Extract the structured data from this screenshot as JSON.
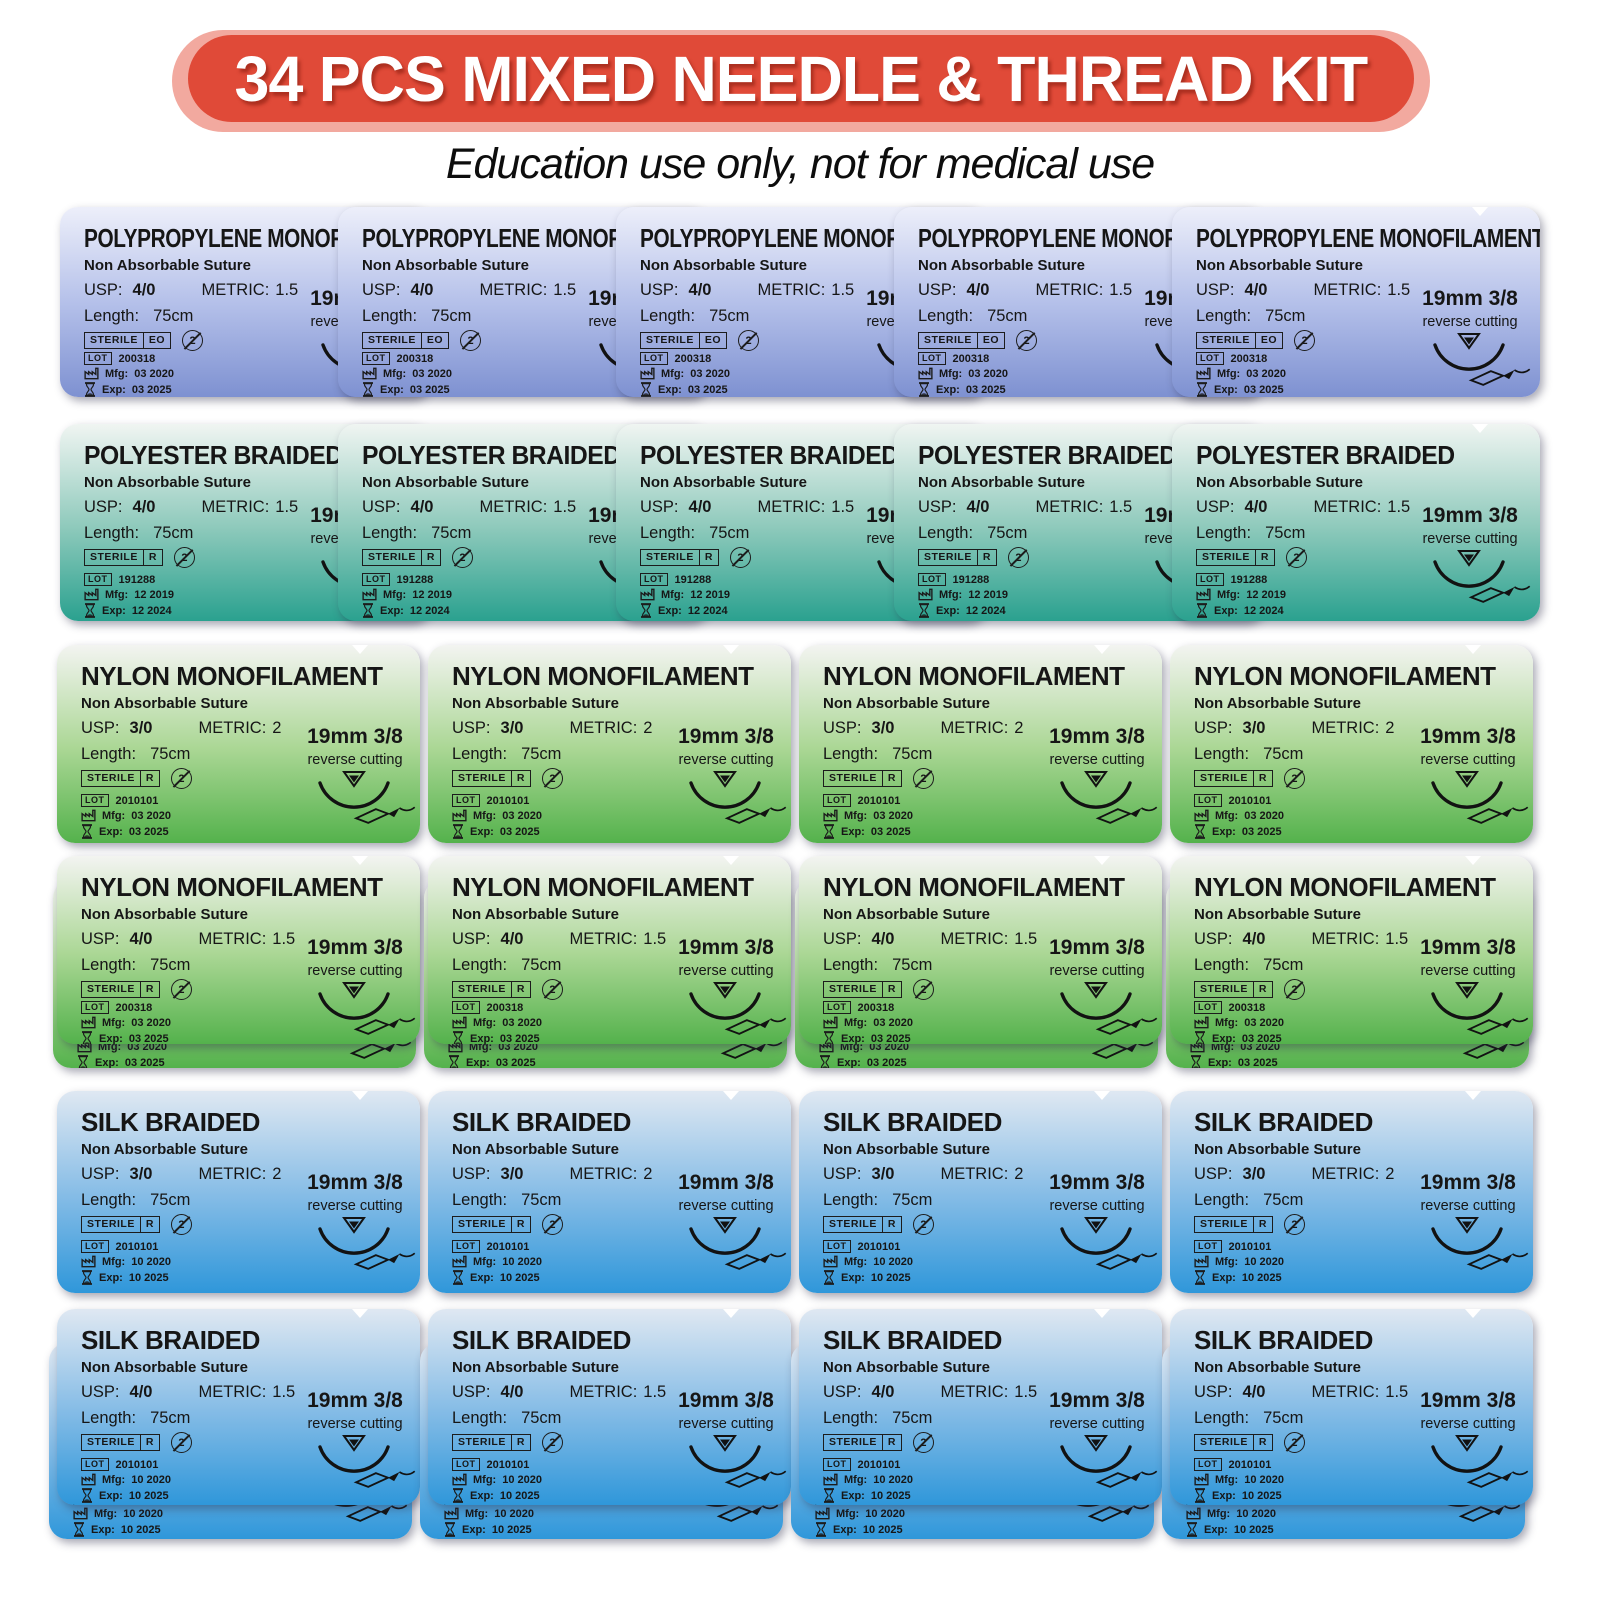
{
  "header": {
    "title": "34 PCS MIXED NEEDLE & THREAD KIT",
    "subtitle": "Education use only, not for medical use",
    "badge_color": "#e04a38",
    "badge_outer_color": "#f2a99f",
    "title_color": "#ffffff"
  },
  "icons": {
    "no_reuse_number": "2",
    "do_not_reuse": "do-not-reuse-icon",
    "manufacture_date": "factory-icon",
    "expiry_date": "hourglass-icon",
    "needle_curvature": "needle-curvature-icon",
    "curved_needle": "curved-needle-icon"
  },
  "rows": [
    {
      "id": "polypropylene-4-0",
      "title": "POLYPROPYLENE MONOFILAMENT",
      "material_subtitle": "Non Absorbable Suture",
      "usp_label": "USP:",
      "usp_value": "4/0",
      "metric_label": "METRIC:",
      "metric_value": "1.5",
      "length_label": "Length:",
      "length_value": "75cm",
      "needle_size": "19mm 3/8",
      "needle_type": "reverse cutting",
      "sterile_label": "STERILE",
      "sterile_method": "EO",
      "lot_label": "LOT",
      "lot_value": "200318",
      "mfg_label": "Mfg:",
      "mfg_value": "03 2020",
      "exp_label": "Exp:",
      "exp_value": "03 2025",
      "count": 5,
      "layers": 1,
      "layout": "cascade",
      "colors": {
        "top": "#edeffa",
        "mid": "#b3bfe9",
        "bottom": "#7e91d1"
      }
    },
    {
      "id": "polyester-4-0",
      "title": "POLYESTER BRAIDED",
      "material_subtitle": "Non Absorbable Suture",
      "usp_label": "USP:",
      "usp_value": "4/0",
      "metric_label": "METRIC:",
      "metric_value": "1.5",
      "length_label": "Length:",
      "length_value": "75cm",
      "needle_size": "19mm 3/8",
      "needle_type": "reverse cutting",
      "sterile_label": "STERILE",
      "sterile_method": "R",
      "lot_label": "LOT",
      "lot_value": "191288",
      "mfg_label": "Mfg:",
      "mfg_value": "12 2019",
      "exp_label": "Exp:",
      "exp_value": "12 2024",
      "count": 5,
      "layers": 1,
      "layout": "cascade",
      "colors": {
        "top": "#f0f5f2",
        "mid": "#8fcabc",
        "bottom": "#2aa18f"
      }
    },
    {
      "id": "nylon-3-0",
      "title": "NYLON MONOFILAMENT",
      "material_subtitle": "Non Absorbable Suture",
      "usp_label": "USP:",
      "usp_value": "3/0",
      "metric_label": "METRIC:",
      "metric_value": "2",
      "length_label": "Length:",
      "length_value": "75cm",
      "needle_size": "19mm 3/8",
      "needle_type": "reverse cutting",
      "sterile_label": "STERILE",
      "sterile_method": "R",
      "lot_label": "LOT",
      "lot_value": "2010101",
      "mfg_label": "Mfg:",
      "mfg_value": "03 2020",
      "exp_label": "Exp:",
      "exp_value": "03 2025",
      "count": 4,
      "layers": 1,
      "layout": "grid",
      "colors": {
        "top": "#f3f4f1",
        "mid": "#abd795",
        "bottom": "#54b24c"
      }
    },
    {
      "id": "nylon-4-0",
      "title": "NYLON MONOFILAMENT",
      "material_subtitle": "Non Absorbable Suture",
      "usp_label": "USP:",
      "usp_value": "4/0",
      "metric_label": "METRIC:",
      "metric_value": "1.5",
      "length_label": "Length:",
      "length_value": "75cm",
      "needle_size": "19mm 3/8",
      "needle_type": "reverse cutting",
      "sterile_label": "STERILE",
      "sterile_method": "R",
      "lot_label": "LOT",
      "lot_value": "200318",
      "mfg_label": "Mfg:",
      "mfg_value": "03 2020",
      "exp_label": "Exp:",
      "exp_value": "03 2025",
      "count": 4,
      "layers": 2,
      "layout": "grid",
      "colors": {
        "top": "#f3f4f1",
        "mid": "#abd795",
        "bottom": "#54b24c"
      }
    },
    {
      "id": "silk-3-0",
      "title": "SILK BRAIDED",
      "material_subtitle": "Non Absorbable Suture",
      "usp_label": "USP:",
      "usp_value": "3/0",
      "metric_label": "METRIC:",
      "metric_value": "2",
      "length_label": "Length:",
      "length_value": "75cm",
      "needle_size": "19mm 3/8",
      "needle_type": "reverse cutting",
      "sterile_label": "STERILE",
      "sterile_method": "R",
      "lot_label": "LOT",
      "lot_value": "2010101",
      "mfg_label": "Mfg:",
      "mfg_value": "10 2020",
      "exp_label": "Exp:",
      "exp_value": "10 2025",
      "count": 4,
      "layers": 1,
      "layout": "grid",
      "colors": {
        "top": "#dfe8f2",
        "mid": "#85bce6",
        "bottom": "#2f97da"
      }
    },
    {
      "id": "silk-4-0",
      "title": "SILK BRAIDED",
      "material_subtitle": "Non Absorbable Suture",
      "usp_label": "USP:",
      "usp_value": "4/0",
      "metric_label": "METRIC:",
      "metric_value": "1.5",
      "length_label": "Length:",
      "length_value": "75cm",
      "needle_size": "19mm 3/8",
      "needle_type": "reverse cutting",
      "sterile_label": "STERILE",
      "sterile_method": "R",
      "lot_label": "LOT",
      "lot_value": "2010101",
      "mfg_label": "Mfg:",
      "mfg_value": "10 2020",
      "exp_label": "Exp:",
      "exp_value": "10 2025",
      "count": 4,
      "layers": 2,
      "layout": "grid",
      "colors": {
        "top": "#dfe8f2",
        "mid": "#85bce6",
        "bottom": "#2f97da"
      }
    }
  ]
}
